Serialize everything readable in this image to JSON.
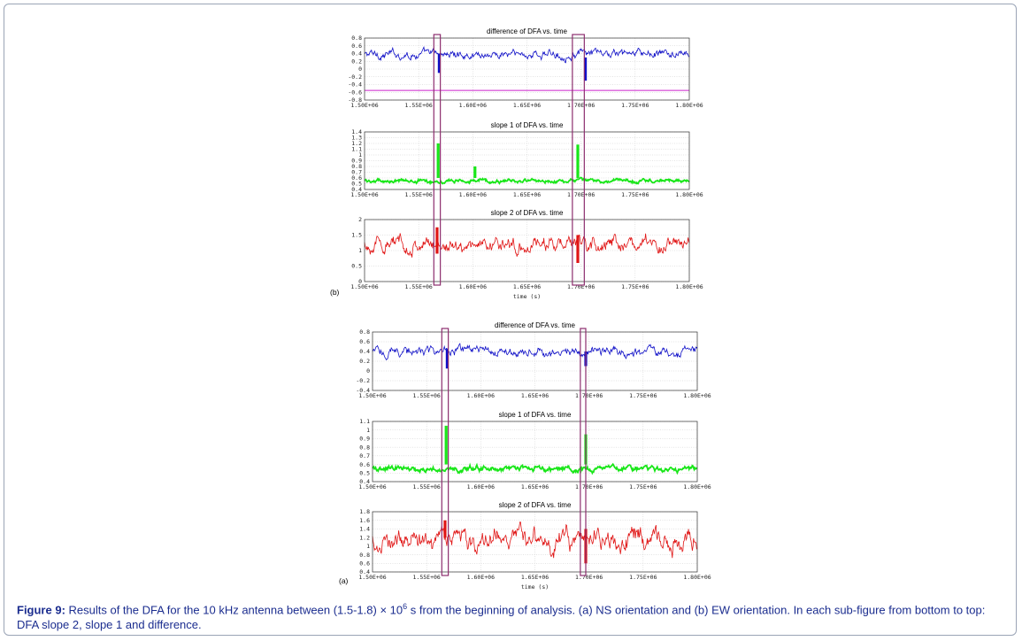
{
  "caption": {
    "label": "Figure 9:",
    "text_before_power": " Results of the DFA for the 10 kHz antenna between (1.5-1.8) × 10",
    "power": "6",
    "text_after_power": " s from the beginning of analysis. (a) NS orientation and (b) EW orientation. In each sub-figure from bottom to top: DFA slope 2, slope 1 and difference."
  },
  "colors": {
    "difference": "#1010c8",
    "slope1": "#19e619",
    "slope2": "#e01515",
    "highlight_box": "#8c2d6e",
    "reference_line": "#cc22cc",
    "grid": "#c8c8c8"
  },
  "chart_data": [
    {
      "panel": "(b)",
      "type": "line",
      "title": "difference of DFA vs. time",
      "xlim": [
        1500000,
        1800000
      ],
      "x_ticks": [
        "1.50E+06",
        "1.55E+06",
        "1.60E+06",
        "1.65E+06",
        "1.70E+06",
        "1.75E+06",
        "1.80E+06"
      ],
      "ylim": [
        -0.8,
        0.8
      ],
      "y_ticks": [
        "0.8",
        "0.6",
        "0.4",
        "0.2",
        "0",
        "-0.2",
        "-0.4",
        "-0.6",
        "-0.8"
      ],
      "series": [
        {
          "color": "blue",
          "baseline": 0.38,
          "noise": 0.1,
          "spikes": [
            {
              "x": 1569000,
              "min": -0.1,
              "max": 0.4
            },
            {
              "x": 1704000,
              "min": -0.3,
              "max": 0.3
            }
          ]
        }
      ],
      "reference_line_y": -0.55,
      "highlight_x_ranges": [
        [
          1564000,
          1570000
        ],
        [
          1692000,
          1703000
        ]
      ],
      "grid": true
    },
    {
      "panel": "(b)",
      "type": "line",
      "title": "slope 1 of DFA vs. time",
      "xlim": [
        1500000,
        1800000
      ],
      "x_ticks": [
        "1.50E+06",
        "1.55E+06",
        "1.60E+06",
        "1.65E+06",
        "1.70E+06",
        "1.75E+06",
        "1.80E+06"
      ],
      "ylim": [
        0.4,
        1.4
      ],
      "y_ticks": [
        "1.4",
        "1.3",
        "1.2",
        "1.1",
        "1",
        "0.9",
        "0.8",
        "0.7",
        "0.6",
        "0.5",
        "0.4"
      ],
      "series": [
        {
          "color": "green",
          "baseline": 0.55,
          "noise": 0.03,
          "spikes": [
            {
              "x": 1568000,
              "min": 0.6,
              "max": 1.2
            },
            {
              "x": 1602000,
              "min": 0.6,
              "max": 0.8
            },
            {
              "x": 1697000,
              "min": 0.6,
              "max": 1.18
            }
          ]
        }
      ],
      "highlight_x_ranges": [
        [
          1564000,
          1570000
        ],
        [
          1692000,
          1703000
        ]
      ],
      "grid": true
    },
    {
      "panel": "(b)",
      "type": "line",
      "title": "slope 2 of DFA vs. time",
      "xlim": [
        1500000,
        1800000
      ],
      "x_ticks": [
        "1.50E+06",
        "1.55E+06",
        "1.60E+06",
        "1.65E+06",
        "1.70E+06",
        "1.75E+06",
        "1.80E+06"
      ],
      "ylim": [
        0,
        2
      ],
      "y_ticks": [
        "2",
        "1.5",
        "1",
        "0.5",
        "0"
      ],
      "xlabel": "time (s)",
      "series": [
        {
          "color": "red",
          "baseline": 1.2,
          "noise": 0.22,
          "spikes": [
            {
              "x": 1567000,
              "min": 0.9,
              "max": 1.75
            },
            {
              "x": 1697000,
              "min": 0.6,
              "max": 1.5
            }
          ]
        }
      ],
      "highlight_x_ranges": [
        [
          1564000,
          1570000
        ],
        [
          1692000,
          1703000
        ]
      ],
      "grid": true
    },
    {
      "panel": "(a)",
      "type": "line",
      "title": "difference of DFA vs. time",
      "xlim": [
        1500000,
        1800000
      ],
      "x_ticks": [
        "1.50E+06",
        "1.55E+06",
        "1.60E+06",
        "1.65E+06",
        "1.70E+06",
        "1.75E+06",
        "1.80E+06"
      ],
      "ylim": [
        -0.4,
        0.8
      ],
      "y_ticks": [
        "0.8",
        "0.6",
        "0.4",
        "0.2",
        "0",
        "-0.2",
        "-0.4"
      ],
      "series": [
        {
          "color": "blue",
          "baseline": 0.4,
          "noise": 0.09,
          "spikes": [
            {
              "x": 1569000,
              "min": 0.05,
              "max": 0.45
            },
            {
              "x": 1697000,
              "min": 0.1,
              "max": 0.4
            }
          ]
        }
      ],
      "highlight_x_ranges": [
        [
          1564000,
          1570000
        ],
        [
          1692000,
          1697000
        ]
      ],
      "grid": true
    },
    {
      "panel": "(a)",
      "type": "line",
      "title": "slope 1 of DFA vs. time",
      "xlim": [
        1500000,
        1800000
      ],
      "x_ticks": [
        "1.50E+06",
        "1.55E+06",
        "1.60E+06",
        "1.65E+06",
        "1.70E+06",
        "1.75E+06",
        "1.80E+06"
      ],
      "ylim": [
        0.4,
        1.1
      ],
      "y_ticks": [
        "1.1",
        "1",
        "0.9",
        "0.8",
        "0.7",
        "0.6",
        "0.5",
        "0.4"
      ],
      "series": [
        {
          "color": "green",
          "baseline": 0.55,
          "noise": 0.03,
          "spikes": [
            {
              "x": 1568000,
              "min": 0.6,
              "max": 1.05
            },
            {
              "x": 1697000,
              "min": 0.6,
              "max": 0.95
            }
          ]
        }
      ],
      "highlight_x_ranges": [
        [
          1564000,
          1570000
        ],
        [
          1692000,
          1697000
        ]
      ],
      "grid": true
    },
    {
      "panel": "(a)",
      "type": "line",
      "title": "slope 2 of DFA vs. time",
      "xlim": [
        1500000,
        1800000
      ],
      "x_ticks": [
        "1.50E+06",
        "1.55E+06",
        "1.60E+06",
        "1.65E+06",
        "1.70E+06",
        "1.75E+06",
        "1.80E+06"
      ],
      "ylim": [
        0.4,
        1.8
      ],
      "y_ticks": [
        "1.8",
        "1.6",
        "1.4",
        "1.2",
        "1",
        "0.8",
        "0.6",
        "0.4"
      ],
      "xlabel": "time (s)",
      "series": [
        {
          "color": "red",
          "baseline": 1.15,
          "noise": 0.22,
          "spikes": [
            {
              "x": 1567000,
              "min": 1.2,
              "max": 1.6
            },
            {
              "x": 1697000,
              "min": 0.6,
              "max": 1.4
            }
          ]
        }
      ],
      "highlight_x_ranges": [
        [
          1564000,
          1570000
        ],
        [
          1692000,
          1697000
        ]
      ],
      "grid": true
    }
  ]
}
